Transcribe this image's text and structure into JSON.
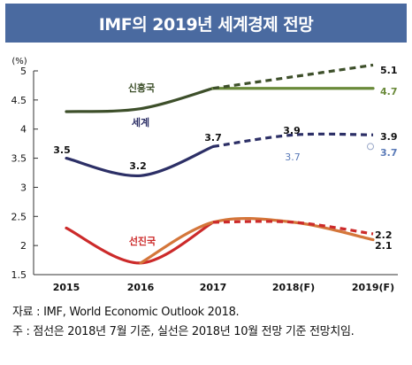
{
  "title": "IMF의 2019년 세계경제 전망",
  "notes": {
    "source": "자료 : IMF, World Economic Outlook 2018.",
    "footnote": "주 : 점선은 2018년 7월 기준, 실선은 2018년 10월 전망 기준 전망치임."
  },
  "chart_data": {
    "type": "line",
    "unit_label": "(%)",
    "categories": [
      "2015",
      "2016",
      "2017",
      "2018(F)",
      "2019(F)"
    ],
    "ylim": [
      1.5,
      5.0
    ],
    "yticks": [
      "1.5",
      "2",
      "2.5",
      "3",
      "3.5",
      "4",
      "4.5",
      "5"
    ],
    "grid": false,
    "series": [
      {
        "name": "신흥국",
        "color": "#3d4f2a",
        "forecast_color": "#6a8a3a",
        "solid": [
          4.3,
          4.35,
          4.7
        ],
        "july": [
          4.7,
          4.9,
          5.1
        ],
        "october": [
          4.7,
          4.7,
          4.7
        ],
        "labels": {
          "july_end": "5.1",
          "october_end": "4.7"
        }
      },
      {
        "name": "세계",
        "color": "#2c2f66",
        "solid": [
          3.5,
          3.2,
          3.7
        ],
        "july": [
          3.7,
          3.9,
          3.9
        ],
        "october": [
          3.7,
          3.7,
          3.7
        ],
        "labels": {
          "p2015": "3.5",
          "p2016": "3.2",
          "p2017": "3.7",
          "july_2018": "3.9",
          "july_end": "3.9",
          "october_2018": "3.7",
          "october_end": "3.7"
        }
      },
      {
        "name": "선진국",
        "color": "#cc2a2a",
        "oct_color": "#d4763a",
        "solid": [
          2.3,
          1.7,
          2.4
        ],
        "july": [
          2.4,
          2.4,
          2.2
        ],
        "october_line": [
          1.7,
          2.4,
          2.4,
          2.1
        ],
        "labels": {
          "july_end": "2.2",
          "october_end": "2.1"
        }
      }
    ]
  }
}
